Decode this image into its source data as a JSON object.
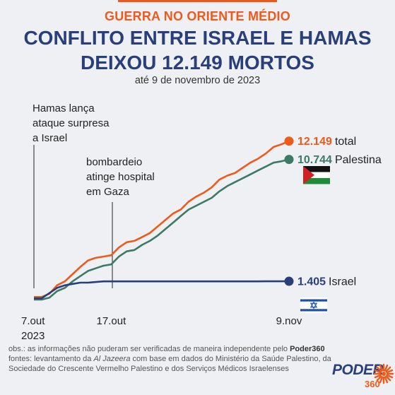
{
  "colors": {
    "accent": "#ee5a1c",
    "navy": "#2a3e7a",
    "green": "#3d7a66",
    "text": "#222222"
  },
  "header": {
    "kicker": "GUERRA NO ORIENTE MÉDIO",
    "title_line1": "CONFLITO ENTRE ISRAEL E HAMAS",
    "title_line2": "DEIXOU 12.149 MORTOS",
    "subtitle": "até 9 de novembro de 2023"
  },
  "chart_data": {
    "type": "line",
    "x": [
      "7.out",
      "8.out",
      "9.out",
      "10.out",
      "11.out",
      "12.out",
      "13.out",
      "14.out",
      "15.out",
      "16.out",
      "17.out",
      "18.out",
      "19.out",
      "20.out",
      "21.out",
      "22.out",
      "23.out",
      "24.out",
      "25.out",
      "26.out",
      "27.out",
      "28.out",
      "29.out",
      "30.out",
      "31.out",
      "1.nov",
      "2.nov",
      "3.nov",
      "4.nov",
      "5.nov",
      "6.nov",
      "7.nov",
      "8.nov",
      "9.nov"
    ],
    "series": [
      {
        "name": "total",
        "color": "#ee5a1c",
        "values": [
          200,
          200,
          450,
          1100,
          1400,
          1950,
          2500,
          3000,
          3200,
          3300,
          3400,
          4000,
          4400,
          4500,
          4800,
          5100,
          5600,
          6100,
          6600,
          6900,
          7500,
          7900,
          8200,
          8600,
          9200,
          9500,
          9700,
          10100,
          10500,
          10800,
          11200,
          11700,
          11900,
          12149
        ]
      },
      {
        "name": "Palestina",
        "color": "#3d7a66",
        "values": [
          0,
          0,
          150,
          650,
          900,
          1400,
          1800,
          2200,
          2400,
          2600,
          2700,
          3300,
          3700,
          3800,
          4200,
          4500,
          4900,
          5400,
          5900,
          6400,
          6900,
          7200,
          7500,
          7800,
          8300,
          8700,
          9000,
          9300,
          9600,
          9900,
          10200,
          10500,
          10600,
          10744
        ]
      },
      {
        "name": "Israel",
        "color": "#2a3e7a",
        "values": [
          100,
          100,
          500,
          900,
          1100,
          1200,
          1300,
          1300,
          1350,
          1400,
          1400,
          1400,
          1400,
          1400,
          1400,
          1400,
          1400,
          1400,
          1400,
          1400,
          1400,
          1400,
          1400,
          1400,
          1400,
          1400,
          1400,
          1400,
          1400,
          1400,
          1405,
          1405,
          1405,
          1405
        ]
      }
    ],
    "end_labels": [
      {
        "value": "12.149",
        "name": "total"
      },
      {
        "value": "10.744",
        "name": "Palestina"
      },
      {
        "value": "1.405",
        "name": "Israel"
      }
    ],
    "x_ticks": [
      {
        "index": 0,
        "line1": "7.out",
        "line2": "2023"
      },
      {
        "index": 10,
        "line1": "17.out",
        "line2": ""
      },
      {
        "index": 33,
        "line1": "9.nov",
        "line2": ""
      }
    ],
    "annotations": [
      {
        "index": 0,
        "lines": [
          "Hamas lança",
          "ataque surpresa",
          "a Israel"
        ]
      },
      {
        "index": 10,
        "lines": [
          "bombardeio",
          "atinge hospital",
          "em Gaza"
        ]
      }
    ],
    "ylim": [
      0,
      13000
    ],
    "grid": false
  },
  "footer": {
    "obs_prefix": "obs.: as informações não puderam ser verificadas de maneira independente pelo ",
    "obs_brand": "Poder360",
    "sources_prefix": "fontes: levantamento da ",
    "sources_source": "Al Jazeera",
    "sources_rest": " com base em dados do Ministério da Saúde Palestino, da Sociedade do Crescente Vermelho Palestino e dos Serviços Médicos Israelenses"
  },
  "logo": {
    "word": "PODER",
    "number": "360"
  }
}
